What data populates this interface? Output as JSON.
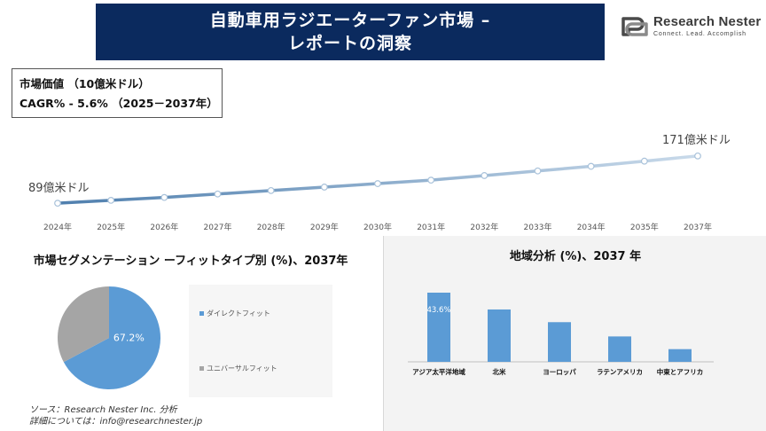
{
  "header": {
    "title_line1": "自動車用ラジエーターファン市場 –",
    "title_line2": "レポートの洞察"
  },
  "logo": {
    "name": "Research Nester",
    "tagline": "Connect. Lead. Accomplish"
  },
  "stats": {
    "market_value_label": "市場価値 （10億米ドル）",
    "cagr_label": "CAGR% - 5.6% （2025－2037年）"
  },
  "colors": {
    "header_bg": "#0b2a5e",
    "line_start": "#4f7fae",
    "line_end": "#c9daea",
    "pie_primary": "#5b9bd5",
    "pie_secondary": "#a5a5a5",
    "bar": "#5b9bd5"
  },
  "chart_data": [
    {
      "type": "line",
      "x": [
        "2024年",
        "2025年",
        "2026年",
        "2027年",
        "2028年",
        "2029年",
        "2030年",
        "2031年",
        "2032年",
        "2033年",
        "2034年",
        "2035年",
        "2037年"
      ],
      "values": [
        89,
        94,
        99,
        105,
        111,
        117,
        123,
        129,
        137,
        145,
        153,
        162,
        171
      ],
      "start_label": "89億米ドル",
      "end_label": "171億米ドル"
    },
    {
      "type": "pie",
      "title": "市場セグメンテーション ーフィットタイプ別 (%)、2037年",
      "slices": [
        {
          "name": "ダイレクトフィット",
          "value": 67.2,
          "label": "67.2%",
          "color": "#5b9bd5"
        },
        {
          "name": "ユニバーサルフィット",
          "value": 32.8,
          "label": "",
          "color": "#a5a5a5"
        }
      ]
    },
    {
      "type": "bar",
      "title": "地域分析 (%)、2037 年",
      "categories": [
        "アジア太平洋地域",
        "北米",
        "ヨーロッパ",
        "ラテンアメリカ",
        "中東とアフリカ"
      ],
      "values": [
        43.6,
        33,
        25,
        16,
        8
      ],
      "data_labels": [
        "43.6%",
        "",
        "",
        "",
        ""
      ]
    }
  ],
  "source": {
    "line1": "ソース：Research Nester Inc. 分析",
    "line2": "詳細については：info@researchnester.jp"
  }
}
